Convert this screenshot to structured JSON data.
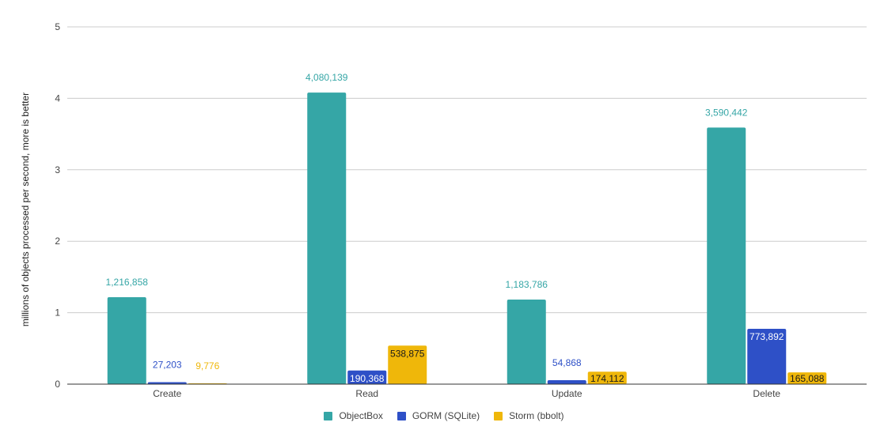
{
  "chart_data": {
    "type": "bar",
    "title": "",
    "xlabel": "",
    "ylabel": "millions of objects processed per second, more is better",
    "ylim": [
      0,
      5
    ],
    "yticks": [
      0,
      1,
      2,
      3,
      4,
      5
    ],
    "grid": true,
    "legend_position": "bottom",
    "categories": [
      "Create",
      "Read",
      "Update",
      "Delete"
    ],
    "series": [
      {
        "name": "ObjectBox",
        "color": "#35a6a6",
        "values": [
          1.216858,
          4.080139,
          1.183786,
          3.590442
        ],
        "labels": [
          "1,216,858",
          "4,080,139",
          "1,183,786",
          "3,590,442"
        ]
      },
      {
        "name": "GORM (SQLite)",
        "color": "#2e50c7",
        "values": [
          0.027203,
          0.190368,
          0.054868,
          0.773892
        ],
        "labels": [
          "27,203",
          "190,368",
          "54,868",
          "773,892"
        ]
      },
      {
        "name": "Storm (bbolt)",
        "color": "#efb70a",
        "values": [
          0.009776,
          0.538875,
          0.174112,
          0.165088
        ],
        "labels": [
          "9,776",
          "538,875",
          "174,112",
          "165,088"
        ]
      }
    ]
  }
}
